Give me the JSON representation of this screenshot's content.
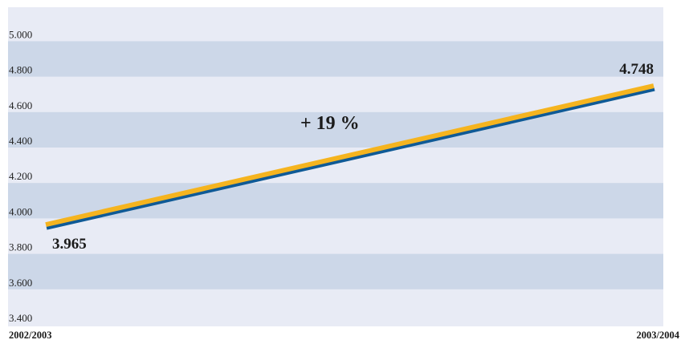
{
  "chart_data": {
    "type": "line",
    "categories": [
      "2002/2003",
      "2003/2004"
    ],
    "series": [
      {
        "values": [
          3965,
          4748
        ]
      }
    ],
    "data_labels": [
      "3.965",
      "4.748"
    ],
    "y_ticks": [
      {
        "value": 3400,
        "label": "3.400"
      },
      {
        "value": 3600,
        "label": "3.600"
      },
      {
        "value": 3800,
        "label": "3.800"
      },
      {
        "value": 4000,
        "label": "4.000"
      },
      {
        "value": 4200,
        "label": "4.200"
      },
      {
        "value": 4400,
        "label": "4.400"
      },
      {
        "value": 4600,
        "label": "4.600"
      },
      {
        "value": 4800,
        "label": "4.800"
      },
      {
        "value": 5000,
        "label": "5.000"
      }
    ],
    "ylim": [
      3400,
      5000
    ],
    "annotation": "+ 19 %",
    "title": "",
    "xlabel": "",
    "ylabel": "",
    "grid": "alternating horizontal bands",
    "colors": {
      "band_light": "#e8ebf5",
      "band_dark": "#ccd7e8",
      "line_main": "#f5b41f",
      "line_shadow": "#0f5a96"
    }
  }
}
